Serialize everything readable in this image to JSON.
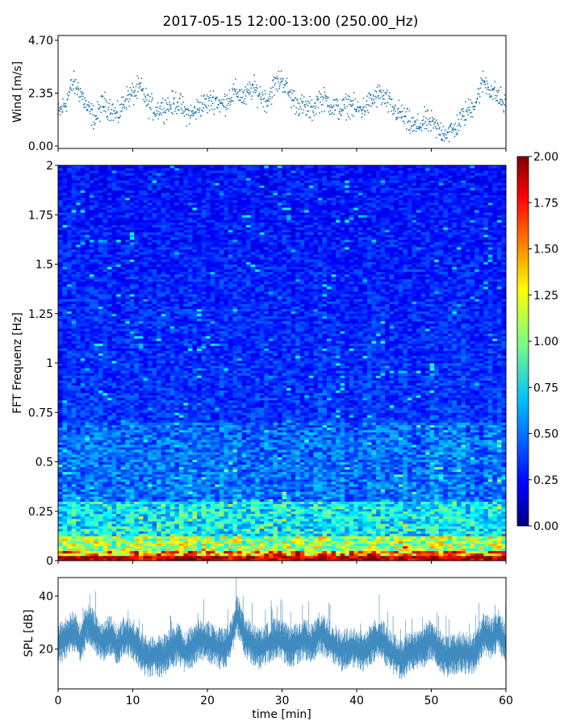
{
  "chart_data": [
    {
      "type": "scatter",
      "title": "2017-05-15 12:00-13:00 (250.00_Hz)",
      "ylabel": "Wind [m/s]",
      "xlim": [
        0,
        60
      ],
      "ylim": [
        0,
        4.7
      ],
      "yticks": [
        "0.00",
        "2.35",
        "4.70"
      ],
      "series": [
        {
          "color": "#1f77b4",
          "x": [
            0,
            1,
            2,
            3,
            4,
            5,
            6,
            7,
            8,
            9,
            10,
            11,
            12,
            13,
            14,
            15,
            16,
            17,
            18,
            19,
            20,
            21,
            22,
            23,
            24,
            25,
            26,
            27,
            28,
            29,
            30,
            31,
            32,
            33,
            34,
            35,
            36,
            37,
            38,
            39,
            40,
            41,
            42,
            43,
            44,
            45,
            46,
            47,
            48,
            49,
            50,
            51,
            52,
            53,
            54,
            55,
            56,
            57,
            58,
            59,
            60
          ],
          "y": [
            1.4,
            1.9,
            2.8,
            2.4,
            1.6,
            1.2,
            1.9,
            1.7,
            1.3,
            2.1,
            2.3,
            2.6,
            1.9,
            1.6,
            1.7,
            1.8,
            2.0,
            1.5,
            1.4,
            1.8,
            1.9,
            2.1,
            1.8,
            2.2,
            2.4,
            2.1,
            2.6,
            2.3,
            2.0,
            2.7,
            3.0,
            2.3,
            1.9,
            1.7,
            1.6,
            2.1,
            2.0,
            1.7,
            1.6,
            1.9,
            1.6,
            1.7,
            2.0,
            2.3,
            2.0,
            1.6,
            1.4,
            1.0,
            0.8,
            1.1,
            1.0,
            0.7,
            0.6,
            0.7,
            1.2,
            1.6,
            2.0,
            2.9,
            2.5,
            2.2,
            1.7
          ]
        }
      ]
    },
    {
      "type": "heatmap",
      "ylabel": "FFT Frequenz [Hz]",
      "xlim": [
        0,
        60
      ],
      "ylim": [
        0,
        2
      ],
      "yticks": [
        "0",
        "0.25",
        "0.5",
        "0.75",
        "1",
        "1.25",
        "1.5",
        "1.75",
        "2"
      ],
      "colormap": "jet",
      "colorbar": {
        "min": 0,
        "max": 2,
        "ticks": [
          "0.00",
          "0.25",
          "0.50",
          "0.75",
          "1.00",
          "1.25",
          "1.50",
          "1.75",
          "2.00"
        ]
      }
    },
    {
      "type": "line",
      "ylabel": "SPL [dB]",
      "xlabel": "time [min]",
      "xlim": [
        0,
        60
      ],
      "ylim": [
        5,
        47
      ],
      "xticks": [
        "0",
        "10",
        "20",
        "30",
        "40",
        "50",
        "60"
      ],
      "yticks": [
        "20",
        "40"
      ],
      "series": [
        {
          "color": "#1f77b4",
          "x": [
            0,
            1,
            2,
            3,
            4,
            5,
            6,
            7,
            8,
            9,
            10,
            11,
            12,
            13,
            14,
            15,
            16,
            17,
            18,
            19,
            20,
            21,
            22,
            23,
            24,
            25,
            26,
            27,
            28,
            29,
            30,
            31,
            32,
            33,
            34,
            35,
            36,
            37,
            38,
            39,
            40,
            41,
            42,
            43,
            44,
            45,
            46,
            47,
            48,
            49,
            50,
            51,
            52,
            53,
            54,
            55,
            56,
            57,
            58,
            59,
            60
          ],
          "y": [
            22,
            24,
            27,
            22,
            30,
            26,
            23,
            25,
            21,
            25,
            24,
            19,
            17,
            18,
            17,
            20,
            22,
            19,
            21,
            24,
            23,
            21,
            20,
            22,
            33,
            25,
            22,
            20,
            22,
            24,
            23,
            21,
            22,
            24,
            22,
            26,
            24,
            22,
            19,
            21,
            20,
            19,
            22,
            25,
            21,
            18,
            16,
            19,
            20,
            21,
            24,
            20,
            17,
            18,
            19,
            18,
            19,
            26,
            24,
            27,
            22
          ]
        }
      ]
    }
  ]
}
